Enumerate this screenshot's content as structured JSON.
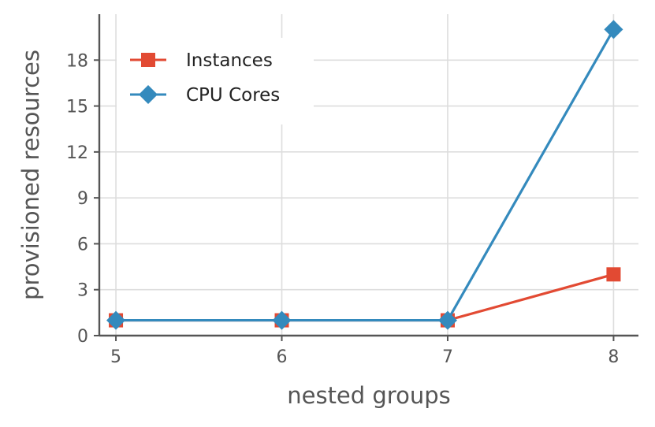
{
  "chart_data": {
    "type": "line",
    "xlabel": "nested groups",
    "ylabel": "provisioned resources",
    "x_ticks": [
      5,
      6,
      7,
      8
    ],
    "y_ticks": [
      0,
      3,
      6,
      9,
      12,
      15,
      18
    ],
    "xlim": [
      4.9,
      8.15
    ],
    "ylim": [
      0,
      21
    ],
    "grid": true,
    "legend_position": "top-left",
    "series": [
      {
        "name": "Instances",
        "color": "#e24a33",
        "marker": "square",
        "x": [
          5,
          6,
          7,
          8
        ],
        "y": [
          1,
          1,
          1,
          4
        ]
      },
      {
        "name": "CPU Cores",
        "color": "#348abd",
        "marker": "diamond",
        "x": [
          5,
          6,
          7,
          8
        ],
        "y": [
          1,
          1,
          1,
          20
        ]
      }
    ]
  }
}
